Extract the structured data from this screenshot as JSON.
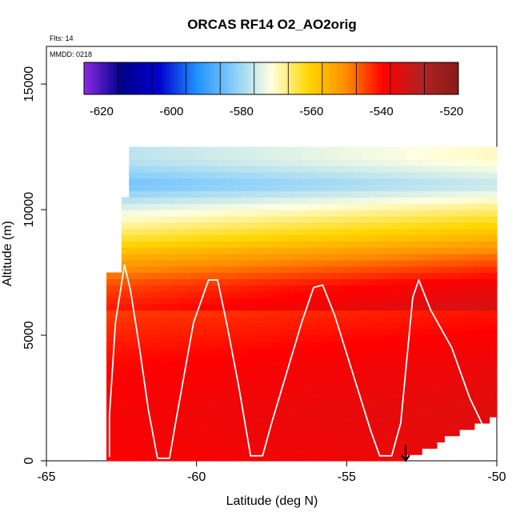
{
  "chart_data": {
    "type": "heatmap",
    "title": "ORCAS RF14 O2_AO2orig",
    "corner_labels": [
      "Flts: 14",
      "MMDD: 0218"
    ],
    "xlabel": "Latitude (deg N)",
    "ylabel": "Altitude (m)",
    "xlim": [
      -65,
      -50
    ],
    "ylim": [
      0,
      16500
    ],
    "x_ticks": [
      -65,
      -60,
      -55,
      -50
    ],
    "x_tick_labels": [
      "-65",
      "-60",
      "-55",
      "-50"
    ],
    "y_ticks": [
      0,
      5000,
      10000,
      15000
    ],
    "y_tick_labels": [
      "0",
      "5000",
      "10000",
      "15000"
    ],
    "colorbar": {
      "range": [
        -625,
        -518
      ],
      "ticks": [
        -620,
        -600,
        -580,
        -560,
        -540,
        -520
      ],
      "tick_labels": [
        "-620",
        "-600",
        "-580",
        "-560",
        "-540",
        "-520"
      ],
      "colors": [
        "#8a2be2",
        "#00008b",
        "#0000cd",
        "#1e90ff",
        "#87cefa",
        "#ffffe0",
        "#ffd700",
        "#ff8c00",
        "#ff0000",
        "#b22222",
        "#8b1a1a"
      ]
    },
    "field": {
      "lat_range": [
        -63,
        -50
      ],
      "alt_range": [
        0,
        12500
      ],
      "value_profile": [
        {
          "alt": 0,
          "value": -536
        },
        {
          "alt": 2000,
          "value": -535
        },
        {
          "alt": 4000,
          "value": -537
        },
        {
          "alt": 6000,
          "value": -541
        },
        {
          "alt": 7000,
          "value": -545
        },
        {
          "alt": 8000,
          "value": -554
        },
        {
          "alt": 9000,
          "value": -565
        },
        {
          "alt": 10000,
          "value": -574
        },
        {
          "alt": 11000,
          "value": -585
        },
        {
          "alt": 12000,
          "value": -578
        }
      ]
    },
    "flight_track": [
      [
        -62.9,
        150
      ],
      [
        -62.9,
        1800
      ],
      [
        -62.7,
        5500
      ],
      [
        -62.4,
        7800
      ],
      [
        -62.2,
        6800
      ],
      [
        -61.9,
        4500
      ],
      [
        -61.6,
        2000
      ],
      [
        -61.3,
        100
      ],
      [
        -60.9,
        100
      ],
      [
        -60.7,
        1500
      ],
      [
        -60.4,
        3500
      ],
      [
        -60.1,
        5500
      ],
      [
        -59.6,
        7200
      ],
      [
        -59.3,
        7200
      ],
      [
        -59.0,
        5500
      ],
      [
        -58.6,
        3000
      ],
      [
        -58.2,
        200
      ],
      [
        -57.8,
        200
      ],
      [
        -57.5,
        1500
      ],
      [
        -57.0,
        3500
      ],
      [
        -56.5,
        5500
      ],
      [
        -56.1,
        6900
      ],
      [
        -55.8,
        7000
      ],
      [
        -55.4,
        5800
      ],
      [
        -54.8,
        3500
      ],
      [
        -54.2,
        1200
      ],
      [
        -53.9,
        200
      ],
      [
        -53.5,
        200
      ],
      [
        -53.2,
        1500
      ],
      [
        -53.0,
        4000
      ],
      [
        -52.8,
        6500
      ],
      [
        -52.6,
        7200
      ],
      [
        -52.2,
        6000
      ],
      [
        -51.5,
        4500
      ],
      [
        -50.9,
        2500
      ],
      [
        -50.3,
        1000
      ]
    ],
    "grid": false,
    "legend": "none"
  }
}
